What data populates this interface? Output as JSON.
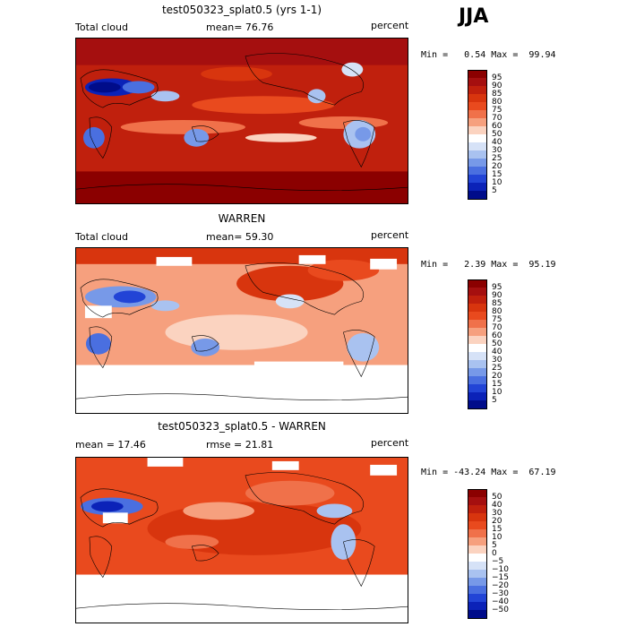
{
  "season": "JJA",
  "panels": [
    {
      "title": "test050323_splat0.5 (yrs 1-1)",
      "left_label": "Total cloud",
      "mean_label": "mean=  76.76",
      "units": "percent",
      "minmax": "Min =   0.54 Max =  99.94",
      "legend_ticks": [
        "95",
        "90",
        "85",
        "80",
        "75",
        "70",
        "60",
        "50",
        "40",
        "30",
        "25",
        "20",
        "15",
        "10",
        "5"
      ]
    },
    {
      "title": "WARREN",
      "left_label": "Total cloud",
      "mean_label": "mean=  59.30",
      "units": "percent",
      "minmax": "Min =   2.39 Max =  95.19",
      "legend_ticks": [
        "95",
        "90",
        "85",
        "80",
        "75",
        "70",
        "60",
        "50",
        "40",
        "30",
        "25",
        "20",
        "15",
        "10",
        "5"
      ]
    },
    {
      "title": "test050323_splat0.5 - WARREN",
      "left_label": "mean =  17.46",
      "mean_label": "rmse =  21.81",
      "units": "percent",
      "minmax": "Min = -43.24 Max =  67.19",
      "legend_ticks": [
        "50",
        "40",
        "30",
        "20",
        "15",
        "10",
        "5",
        "0",
        "−5",
        "−10",
        "−15",
        "−20",
        "−30",
        "−40",
        "−50"
      ]
    }
  ],
  "colors": {
    "scale": [
      "#8b0000",
      "#a50f0f",
      "#c0200d",
      "#d8350e",
      "#e94a1e",
      "#f0714a",
      "#f6a07e",
      "#fbd3c0",
      "#ffffff",
      "#d6e2f7",
      "#a9c2f0",
      "#7799e8",
      "#4a6fe0",
      "#2244d6",
      "#0b22b8",
      "#000c8a"
    ]
  }
}
